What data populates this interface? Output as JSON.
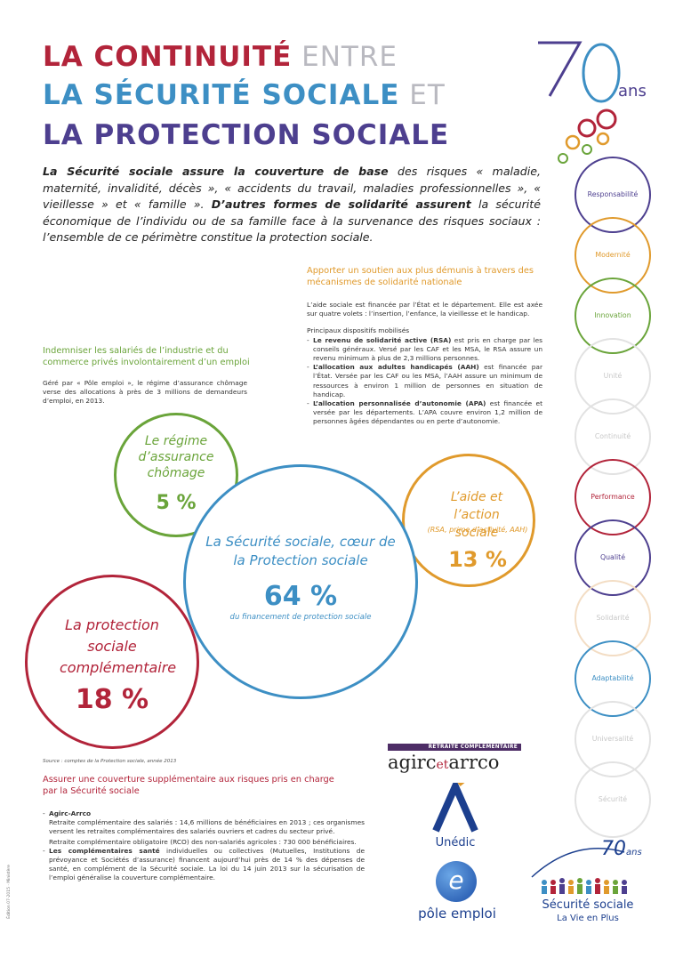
{
  "title": {
    "line1_bold": "LA CONTINUITÉ",
    "line1_light": "ENTRE",
    "line2_bold": "LA SÉCURITÉ SOCIALE",
    "line2_light": "ET",
    "line3_bold": "LA PROTECTION SOCIALE"
  },
  "intro": {
    "bold1": "La Sécurité sociale assure la couverture de base",
    "text1": " des risques « maladie, maternité, invalidité, décès », « accidents du travail, maladies professionnelles », « vieillesse » et « famille ». ",
    "bold2": "D’autres formes de solidarité assurent",
    "text2": " la sécurité économique de l’individu ou de sa famille face à la survenance des risques sociaux : l’ensemble de ce périmètre constitue la protection sociale."
  },
  "solidarity": {
    "title": "Apporter un soutien aux plus démunis à travers des mécanismes de solidarité nationale",
    "para1": "L’aide sociale est financée par l’État et le département. Elle est axée sur quatre volets : l’insertion, l’enfance, la vieillesse et le handicap.",
    "list_title": "Principaux dispositifs mobilisés",
    "items": [
      {
        "bold": "Le revenu de solidarité active (RSA)",
        "text": " est pris en charge par les conseils généraux. Versé par les CAF et les MSA, le RSA assure un revenu minimum à plus de 2,3 millions personnes."
      },
      {
        "bold": "L’allocation aux adultes handicapés (AAH)",
        "text": " est financée par l’État. Versée par les CAF ou les MSA, l’AAH assure un minimum de ressources à environ 1 million de personnes en situation de handicap."
      },
      {
        "bold": "L’allocation personnalisée d’autonomie (APA)",
        "text": " est financée et versée par les départements. L’APA couvre environ 1,2 million de personnes âgées dépendantes ou en perte d’autonomie."
      }
    ]
  },
  "unemployment": {
    "title": "Indemniser les salariés de l’industrie et du commerce privés involontairement d’un emploi",
    "text": "Géré par « Pôle emploi », le régime d’assurance chômage verse des allocations à près de 3 millions de demandeurs d’emploi, en 2013."
  },
  "circles": {
    "chomage": {
      "label": "Le régime d’assurance chômage",
      "value": "5 %"
    },
    "secu": {
      "label": "La Sécurité sociale, cœur de la Protection sociale",
      "value": "64 %",
      "sub": "du financement de protection sociale"
    },
    "aide": {
      "label": "L’aide et l’action sociale",
      "sub": "(RSA, prime d’activité, AAH)",
      "value": "13 %"
    },
    "complementaire": {
      "label": "La protection sociale complémentaire",
      "value": "18 %"
    }
  },
  "chart_data": {
    "type": "pie",
    "categories": [
      "La Sécurité sociale, cœur de la Protection sociale",
      "La protection sociale complémentaire",
      "L’aide et l’action sociale",
      "Le régime d’assurance chômage"
    ],
    "values": [
      64,
      18,
      13,
      5
    ]
  },
  "source": "Source : comptes de la Protection sociale, année 2013",
  "complementary": {
    "title": "Assurer une couverture supplémentaire aux risques pris en charge par la Sécurité sociale",
    "agirc_title": "Agirc-Arrco",
    "agirc_text1": "Retraite complémentaire des salariés : 14,6 millions de bénéficiaires en 2013 ; ces organismes versent les retraites complémentaires des salariés ouvriers et cadres du secteur privé.",
    "agirc_text2": "Retraite complémentaire obligatoire (RCO) des non-salariés agricoles : 730 000 bénéficiaires.",
    "health_bold": "Les complémentaires santé",
    "health_text": " individuelles ou collectives (Mutuelles, Institutions de prévoyance et Sociétés d’assurance) financent aujourd’hui près de 14 % des dépenses de santé, en complément de la Sécurité sociale. La loi du 14 juin 2013 sur la sécurisation de l’emploi généralise la couverture complémentaire."
  },
  "logos": {
    "agirc_banner": "RETRAITE COMPLÉMENTAIRE",
    "agirc_a": "agirc",
    "agirc_et": "et",
    "agirc_b": "arrco",
    "unedic": "Unédic",
    "pole_emploi": "pôle emploi",
    "secu_name": "Sécurité sociale",
    "secu_tagline": "La Vie en Plus",
    "anniv_number": "70",
    "anniv_ans": "ans"
  },
  "values_rings": [
    {
      "label": "Responsabilité",
      "color": "#4d3f8f"
    },
    {
      "label": "Modernité",
      "color": "#e09a2c"
    },
    {
      "label": "Innovation",
      "color": "#6aa43a"
    },
    {
      "label": "Unité",
      "color": "#e2e2e2"
    },
    {
      "label": "Continuité",
      "color": "#e2e2e2"
    },
    {
      "label": "Performance",
      "color": "#b2243a"
    },
    {
      "label": "Qualité",
      "color": "#4d3f8f"
    },
    {
      "label": "Solidarité",
      "color": "#f3ddc4"
    },
    {
      "label": "Adaptabilité",
      "color": "#3d8fc4"
    },
    {
      "label": "Universalité",
      "color": "#e2e2e2"
    },
    {
      "label": "Sécurité",
      "color": "#e2e2e2"
    }
  ],
  "side_credit": "Édition 07-2015 · Ministère"
}
